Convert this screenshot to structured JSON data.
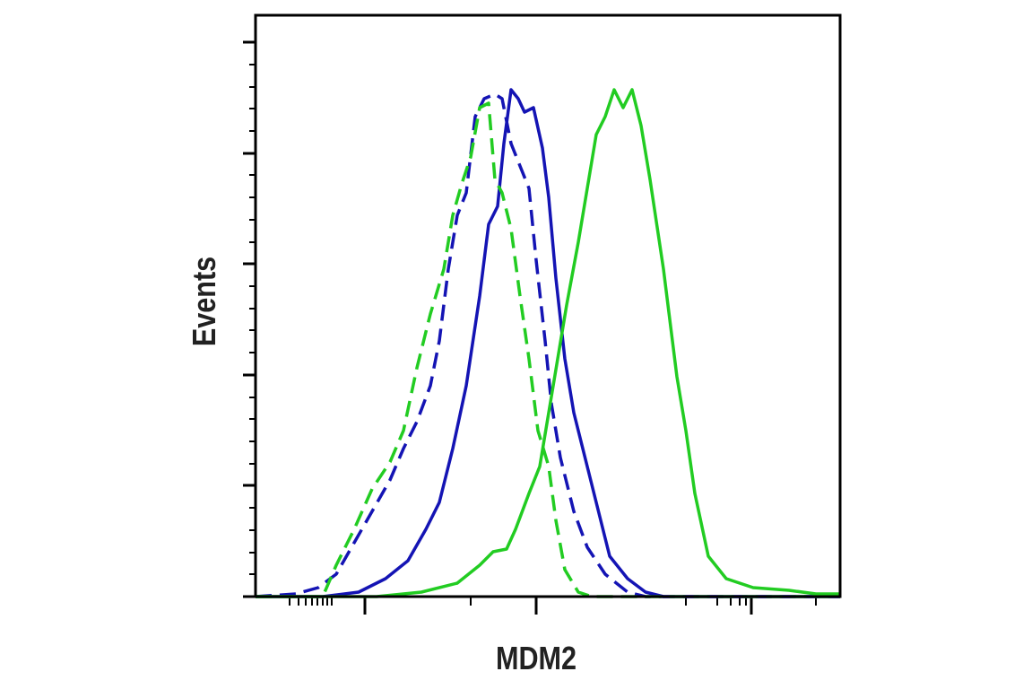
{
  "chart_data": {
    "type": "line",
    "x_label": "MDM2",
    "y_label": "Events",
    "xlim": [
      0,
      652
    ],
    "ylim": [
      0,
      648
    ],
    "xticks": [
      122,
      313,
      553
    ],
    "xminorticks": [
      38,
      48,
      56,
      63,
      69,
      75,
      80,
      85,
      240,
      480,
      515,
      530,
      540,
      547,
      625
    ],
    "yticks": [
      0,
      124,
      247,
      371,
      494,
      618
    ],
    "yminorticks": [
      25,
      49,
      74,
      99,
      148,
      173,
      198,
      222,
      272,
      297,
      321,
      346,
      395,
      420,
      445,
      470,
      519,
      544,
      568,
      593
    ],
    "series": [
      {
        "color": "#1414b4",
        "dashed": false,
        "x": [
          0,
          75,
          115,
          145,
          170,
          190,
          205,
          220,
          235,
          250,
          260,
          270,
          277,
          285,
          293,
          300,
          310,
          320,
          327,
          335,
          345,
          355,
          370,
          380,
          395,
          415,
          435,
          455,
          652
        ],
        "values": [
          0,
          0,
          5,
          20,
          40,
          75,
          105,
          165,
          235,
          335,
          415,
          435,
          505,
          565,
          555,
          540,
          545,
          500,
          445,
          355,
          265,
          205,
          145,
          105,
          45,
          20,
          5,
          0,
          0
        ]
      },
      {
        "color": "#1414b4",
        "dashed": true,
        "x": [
          0,
          45,
          70,
          90,
          110,
          130,
          150,
          165,
          180,
          195,
          205,
          215,
          225,
          235,
          245,
          255,
          267,
          275,
          285,
          297,
          305,
          313,
          323,
          330,
          340,
          355,
          370,
          390,
          415,
          435,
          652
        ],
        "values": [
          0,
          3,
          10,
          25,
          60,
          95,
          130,
          165,
          195,
          235,
          285,
          365,
          425,
          450,
          535,
          555,
          560,
          555,
          505,
          475,
          455,
          375,
          285,
          215,
          155,
          95,
          55,
          25,
          5,
          0,
          0
        ]
      },
      {
        "color": "#22cc22",
        "dashed": true,
        "x": [
          0,
          75,
          90,
          110,
          130,
          150,
          165,
          180,
          195,
          210,
          220,
          230,
          240,
          250,
          260,
          267,
          275,
          285,
          295,
          305,
          315,
          327,
          335,
          345,
          360,
          375,
          652
        ],
        "values": [
          0,
          0,
          35,
          75,
          120,
          150,
          185,
          255,
          315,
          365,
          425,
          460,
          490,
          545,
          550,
          465,
          450,
          410,
          335,
          265,
          185,
          145,
          85,
          30,
          5,
          0,
          0
        ]
      },
      {
        "color": "#22cc22",
        "dashed": false,
        "x": [
          0,
          135,
          185,
          225,
          250,
          265,
          280,
          290,
          305,
          317,
          327,
          337,
          347,
          360,
          370,
          380,
          390,
          400,
          410,
          420,
          430,
          440,
          455,
          470,
          480,
          490,
          505,
          525,
          555,
          595,
          625,
          652
        ],
        "values": [
          0,
          0,
          5,
          15,
          35,
          50,
          53,
          75,
          115,
          145,
          205,
          265,
          325,
          395,
          455,
          515,
          535,
          565,
          545,
          565,
          525,
          465,
          365,
          245,
          185,
          115,
          45,
          20,
          10,
          7,
          3,
          3
        ]
      }
    ]
  }
}
